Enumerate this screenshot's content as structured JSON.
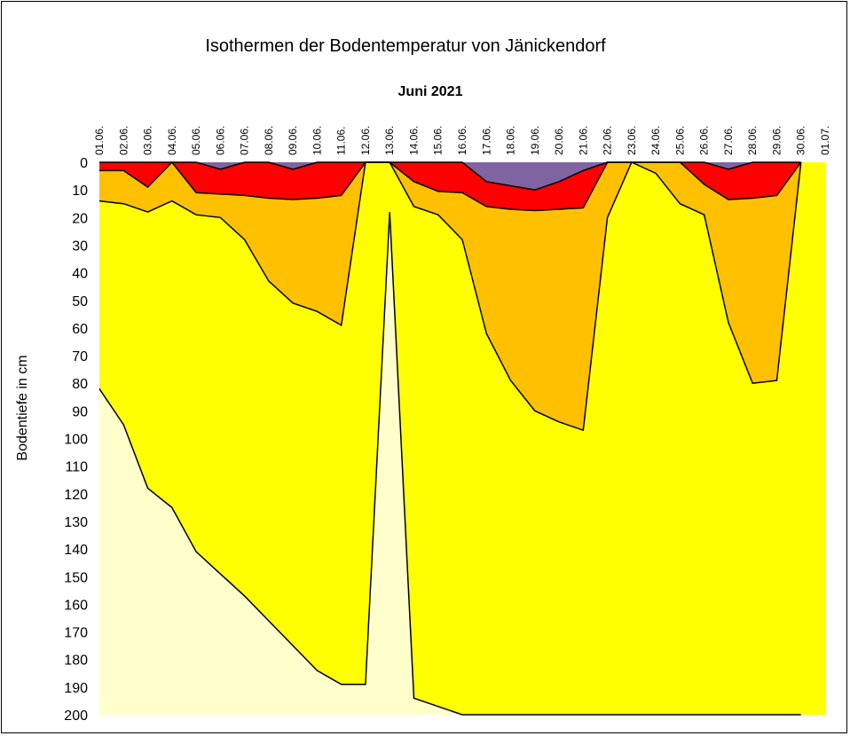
{
  "chart_data": {
    "type": "area",
    "title": "Isothermen der Bodentemperatur von Jänickendorf",
    "subtitle": "Juni 2021",
    "xlabel": "",
    "ylabel": "Bodentiefe in cm",
    "y_inverted": true,
    "ylim": [
      0,
      200
    ],
    "yticks": [
      0,
      10,
      20,
      30,
      40,
      50,
      60,
      70,
      80,
      90,
      100,
      110,
      120,
      130,
      140,
      150,
      160,
      170,
      180,
      190,
      200
    ],
    "categories": [
      "01.06.",
      "02.06.",
      "03.06.",
      "04.06.",
      "05.06.",
      "06.06.",
      "07.06.",
      "08.06.",
      "09.06.",
      "10.06.",
      "11.06.",
      "12.06.",
      "13.06.",
      "14.06.",
      "15.06.",
      "16.06.",
      "17.06.",
      "18.06.",
      "19.06.",
      "20.06.",
      "21.06.",
      "22.06.",
      "23.06.",
      "24.06.",
      "25.06.",
      "26.06.",
      "27.06.",
      "28.06.",
      "29.06.",
      "30.06.",
      "01.07."
    ],
    "grid": false,
    "layers": [
      {
        "color": "#FFFF00",
        "depths": [
          200,
          200,
          200,
          200,
          200,
          200,
          200,
          200,
          200,
          200,
          200,
          200,
          200,
          200,
          200,
          200,
          200,
          200,
          200,
          200,
          200,
          200,
          200,
          200,
          200,
          200,
          200,
          200,
          200,
          200,
          200
        ]
      },
      {
        "color": "#FFC000",
        "depths": [
          14,
          15,
          18,
          14,
          19,
          20,
          28,
          43,
          51,
          54,
          59,
          0,
          0,
          16,
          19,
          28,
          62,
          79,
          90,
          94,
          97,
          20,
          0,
          4,
          15,
          19,
          58,
          80,
          79,
          0,
          null
        ]
      },
      {
        "color": "#FF0000",
        "depths": [
          3,
          3,
          9,
          0,
          11,
          11.5,
          12,
          13,
          13.5,
          13,
          12,
          0,
          0,
          7,
          10.5,
          11,
          16,
          17,
          17.5,
          17,
          16.5,
          0,
          0,
          0,
          0,
          8,
          13.5,
          13,
          12,
          0,
          null
        ]
      },
      {
        "color": "#8064A2",
        "depths": [
          0,
          0,
          0,
          0,
          0,
          2.5,
          0,
          0,
          2.5,
          0,
          0,
          0,
          0,
          0,
          0,
          0,
          7,
          8.5,
          10,
          7,
          3,
          0,
          0,
          0,
          0,
          0,
          2.5,
          0,
          0,
          0,
          null
        ]
      },
      {
        "color": "#FFFFCC",
        "depths": [
          82,
          95,
          118,
          125,
          141,
          149,
          157,
          166,
          175,
          184,
          189,
          189,
          18,
          194,
          197,
          200,
          200,
          200,
          200,
          200,
          200,
          200,
          200,
          200,
          200,
          200,
          200,
          200,
          200,
          200,
          null
        ],
        "from": "bottom"
      }
    ]
  }
}
